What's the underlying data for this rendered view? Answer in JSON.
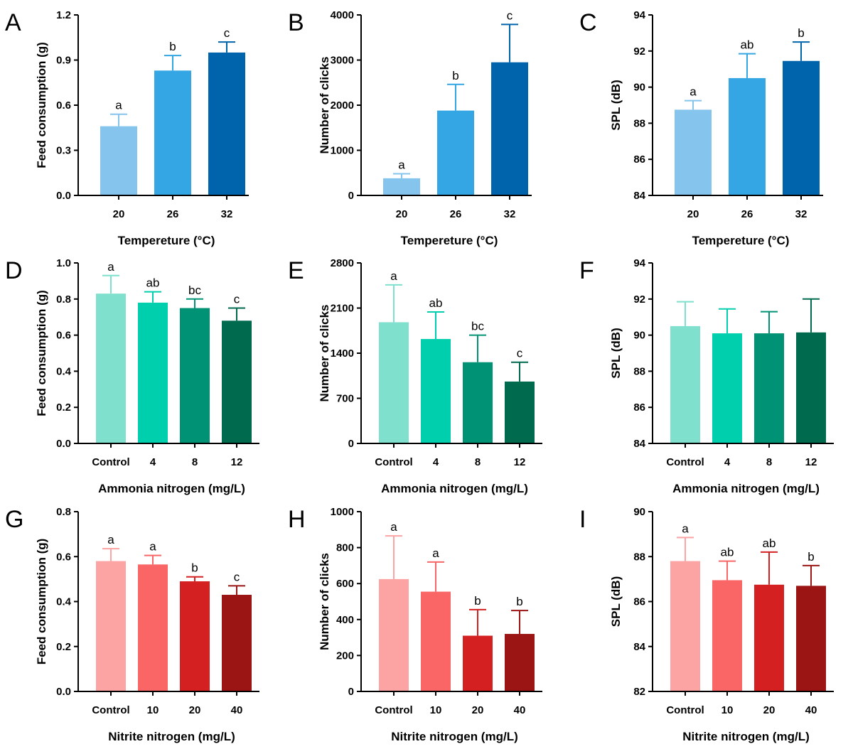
{
  "colors": {
    "temperature": [
      "#85C4ED",
      "#33A6E3",
      "#0064AD"
    ],
    "ammonia": [
      "#7FE0CE",
      "#00CFAE",
      "#009274",
      "#006A4F"
    ],
    "nitrite": [
      "#FCA3A3",
      "#F96665",
      "#D42020",
      "#9B1515"
    ]
  },
  "chart_data": [
    {
      "id": "A",
      "type": "bar",
      "categories": [
        "20",
        "26",
        "32"
      ],
      "values": [
        0.46,
        0.83,
        0.95
      ],
      "errors": [
        0.08,
        0.1,
        0.07
      ],
      "letters": [
        "a",
        "b",
        "c"
      ],
      "xlabel": "Tempereture (°C)",
      "ylabel": "Feed consumption (g)",
      "ylim": [
        0,
        1.2
      ],
      "yticks": [
        0.0,
        0.3,
        0.6,
        0.9,
        1.2
      ],
      "tick_decimals": 1,
      "palette": "temperature"
    },
    {
      "id": "B",
      "type": "bar",
      "categories": [
        "20",
        "26",
        "32"
      ],
      "values": [
        380,
        1880,
        2950
      ],
      "errors": [
        100,
        580,
        840
      ],
      "letters": [
        "a",
        "b",
        "c"
      ],
      "xlabel": "Tempereture (°C)",
      "ylabel": "Number of clicks",
      "ylim": [
        0,
        4000
      ],
      "yticks": [
        0,
        1000,
        2000,
        3000,
        4000
      ],
      "tick_decimals": 0,
      "palette": "temperature"
    },
    {
      "id": "C",
      "type": "bar",
      "categories": [
        "20",
        "26",
        "32"
      ],
      "values": [
        88.75,
        90.5,
        91.45
      ],
      "errors": [
        0.5,
        1.35,
        1.05
      ],
      "letters": [
        "a",
        "ab",
        "b"
      ],
      "xlabel": "Tempereture (°C)",
      "ylabel": "SPL (dB)",
      "ylim": [
        84,
        94
      ],
      "yticks": [
        84,
        86,
        88,
        90,
        92,
        94
      ],
      "tick_decimals": 0,
      "palette": "temperature"
    },
    {
      "id": "D",
      "type": "bar",
      "categories": [
        "Control",
        "4",
        "8",
        "12"
      ],
      "values": [
        0.83,
        0.78,
        0.75,
        0.68
      ],
      "errors": [
        0.1,
        0.06,
        0.05,
        0.07
      ],
      "letters": [
        "a",
        "ab",
        "bc",
        "c"
      ],
      "xlabel": "Ammonia nitrogen (mg/L)",
      "ylabel": "Feed consumption (g)",
      "ylim": [
        0,
        1.0
      ],
      "yticks": [
        0.0,
        0.2,
        0.4,
        0.6,
        0.8,
        1.0
      ],
      "tick_decimals": 1,
      "palette": "ammonia"
    },
    {
      "id": "E",
      "type": "bar",
      "categories": [
        "Control",
        "4",
        "8",
        "12"
      ],
      "values": [
        1880,
        1620,
        1260,
        960
      ],
      "errors": [
        580,
        420,
        420,
        300
      ],
      "letters": [
        "a",
        "ab",
        "bc",
        "c"
      ],
      "xlabel": "Ammonia nitrogen (mg/L)",
      "ylabel": "Number of clicks",
      "ylim": [
        0,
        2800
      ],
      "yticks": [
        0,
        700,
        1400,
        2100,
        2800
      ],
      "tick_decimals": 0,
      "palette": "ammonia"
    },
    {
      "id": "F",
      "type": "bar",
      "categories": [
        "Control",
        "4",
        "8",
        "12"
      ],
      "values": [
        90.5,
        90.1,
        90.1,
        90.15
      ],
      "errors": [
        1.35,
        1.35,
        1.2,
        1.85
      ],
      "letters": [
        "",
        "",
        "",
        ""
      ],
      "xlabel": "Ammonia nitrogen (mg/L)",
      "ylabel": "SPL (dB)",
      "ylim": [
        84,
        94
      ],
      "yticks": [
        84,
        86,
        88,
        90,
        92,
        94
      ],
      "tick_decimals": 0,
      "palette": "ammonia"
    },
    {
      "id": "G",
      "type": "bar",
      "categories": [
        "Control",
        "10",
        "20",
        "40"
      ],
      "values": [
        0.58,
        0.565,
        0.49,
        0.43
      ],
      "errors": [
        0.055,
        0.04,
        0.02,
        0.04
      ],
      "letters": [
        "a",
        "a",
        "b",
        "c"
      ],
      "xlabel": "Nitrite nitrogen (mg/L)",
      "ylabel": "Feed consumption (g)",
      "ylim": [
        0,
        0.8
      ],
      "yticks": [
        0.0,
        0.2,
        0.4,
        0.6,
        0.8
      ],
      "tick_decimals": 1,
      "palette": "nitrite"
    },
    {
      "id": "H",
      "type": "bar",
      "categories": [
        "Control",
        "10",
        "20",
        "40"
      ],
      "values": [
        625,
        555,
        310,
        320
      ],
      "errors": [
        240,
        165,
        145,
        130
      ],
      "letters": [
        "a",
        "a",
        "b",
        "b"
      ],
      "xlabel": "Nitrite nitrogen (mg/L)",
      "ylabel": "Number of clicks",
      "ylim": [
        0,
        1000
      ],
      "yticks": [
        0,
        200,
        400,
        600,
        800,
        1000
      ],
      "tick_decimals": 0,
      "palette": "nitrite"
    },
    {
      "id": "I",
      "type": "bar",
      "categories": [
        "Control",
        "10",
        "20",
        "40"
      ],
      "values": [
        87.8,
        86.95,
        86.75,
        86.7
      ],
      "errors": [
        1.05,
        0.85,
        1.45,
        0.9
      ],
      "letters": [
        "a",
        "ab",
        "ab",
        "b"
      ],
      "xlabel": "Nitrite nitrogen (mg/L)",
      "ylabel": "SPL (dB)",
      "ylim": [
        82,
        90
      ],
      "yticks": [
        82,
        84,
        86,
        88,
        90
      ],
      "tick_decimals": 0,
      "palette": "nitrite"
    }
  ]
}
